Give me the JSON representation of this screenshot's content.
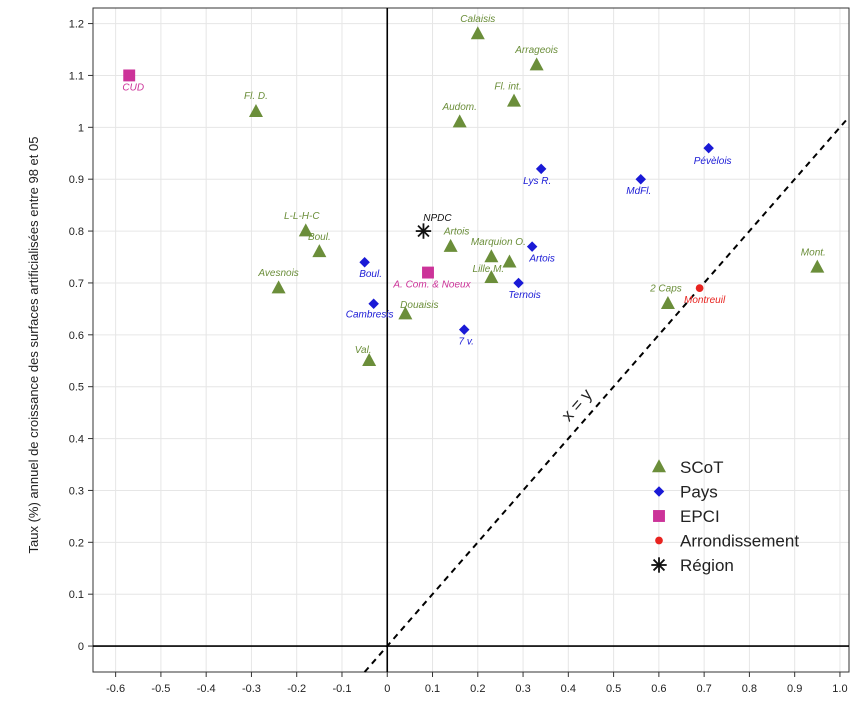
{
  "chart_data": {
    "type": "scatter",
    "title": "",
    "xlabel": "",
    "ylabel": "Taux (%) annuel de croissance des surfaces artificialisées entre 98 et 05",
    "xlim": [
      -0.65,
      1.02
    ],
    "ylim": [
      -0.05,
      1.23
    ],
    "x_ticks": [
      -0.6,
      -0.5,
      -0.4,
      -0.3,
      -0.2,
      -0.1,
      0,
      0.1,
      0.2,
      0.3,
      0.4,
      0.5,
      0.6,
      0.7,
      0.8,
      0.9,
      1.0
    ],
    "x_tick_labels": [
      "-0.6",
      "-0.5",
      "-0.4",
      "-0.3",
      "-0.2",
      "-0.1",
      "0",
      "0.1",
      "0.2",
      "0.3",
      "0.4",
      "0.5",
      "0.6",
      "0.7",
      "0.8",
      "0.9",
      "1.0"
    ],
    "y_ticks": [
      0,
      0.1,
      0.2,
      0.3,
      0.4,
      0.5,
      0.6,
      0.7,
      0.8,
      0.9,
      1,
      1.1,
      1.2
    ],
    "y_tick_labels": [
      "0",
      "0.1",
      "0.2",
      "0.3",
      "0.4",
      "0.5",
      "0.6",
      "0.7",
      "0.8",
      "0.9",
      "1",
      "1.1",
      "1.2"
    ],
    "grid": true,
    "diagonal_label": "x = y",
    "legend_position": "bottom-right",
    "series": [
      {
        "name": "SCoT",
        "marker": "triangle",
        "color": "#6b8e3a",
        "points": [
          {
            "label": "Calaisis",
            "x": 0.2,
            "y": 1.18
          },
          {
            "label": "Arrageois",
            "x": 0.33,
            "y": 1.12
          },
          {
            "label": "Fl. D.",
            "x": -0.29,
            "y": 1.03
          },
          {
            "label": "Fl. int.",
            "x": 0.28,
            "y": 1.05
          },
          {
            "label": "Audom.",
            "x": 0.16,
            "y": 1.01
          },
          {
            "label": "L-L-H-C",
            "x": -0.18,
            "y": 0.8
          },
          {
            "label": "Boul.",
            "x": -0.15,
            "y": 0.76
          },
          {
            "label": "Artois",
            "x": 0.14,
            "y": 0.77
          },
          {
            "label": "Marquion O.",
            "x": 0.23,
            "y": 0.75
          },
          {
            "label": "",
            "x": 0.27,
            "y": 0.74
          },
          {
            "label": "Lille M.",
            "x": 0.23,
            "y": 0.71
          },
          {
            "label": "Avesnois",
            "x": -0.24,
            "y": 0.69
          },
          {
            "label": "Douaisis",
            "x": 0.04,
            "y": 0.64
          },
          {
            "label": "Val.",
            "x": -0.04,
            "y": 0.55
          },
          {
            "label": "2 Caps",
            "x": 0.62,
            "y": 0.66
          },
          {
            "label": "Mont.",
            "x": 0.95,
            "y": 0.73
          }
        ]
      },
      {
        "name": "Pays",
        "marker": "diamond",
        "color": "#1a1ad6",
        "points": [
          {
            "label": "Pévèlois",
            "x": 0.71,
            "y": 0.96
          },
          {
            "label": "Lys R.",
            "x": 0.34,
            "y": 0.92
          },
          {
            "label": "MdFl.",
            "x": 0.56,
            "y": 0.9
          },
          {
            "label": "Artois",
            "x": 0.32,
            "y": 0.77
          },
          {
            "label": "Ternois",
            "x": 0.29,
            "y": 0.7
          },
          {
            "label": "Boul.",
            "x": -0.05,
            "y": 0.74
          },
          {
            "label": "Cambresis",
            "x": -0.03,
            "y": 0.66
          },
          {
            "label": "7 v.",
            "x": 0.17,
            "y": 0.61
          }
        ]
      },
      {
        "name": "EPCI",
        "marker": "square",
        "color": "#cc3399",
        "points": [
          {
            "label": "CUD",
            "x": -0.57,
            "y": 1.1
          },
          {
            "label": "A. Com. & Noeux",
            "x": 0.09,
            "y": 0.72
          }
        ]
      },
      {
        "name": "Arrondissement",
        "marker": "circle",
        "color": "#e8231f",
        "points": [
          {
            "label": "Montreuil",
            "x": 0.69,
            "y": 0.69
          }
        ]
      },
      {
        "name": "Région",
        "marker": "asterisk",
        "color": "#111111",
        "points": [
          {
            "label": "NPDC",
            "x": 0.08,
            "y": 0.8
          }
        ]
      }
    ]
  }
}
